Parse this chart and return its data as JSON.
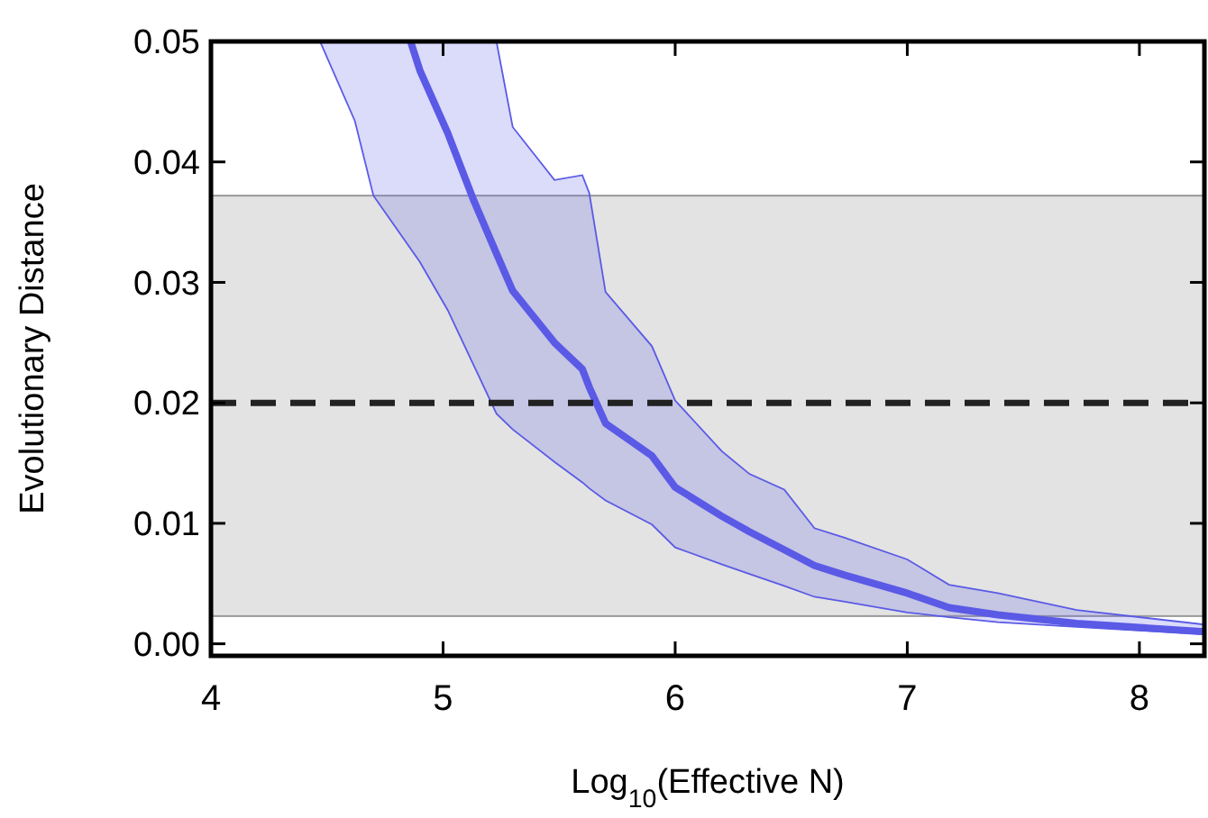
{
  "chart_data": {
    "type": "line",
    "xlabel": "Log$_{10}$(Effective N)",
    "ylabel": "Evolutionary Distance",
    "x": [
      4.47,
      4.62,
      4.7,
      4.86,
      4.9,
      5.02,
      5.13,
      5.23,
      5.3,
      5.48,
      5.6,
      5.63,
      5.7,
      5.9,
      6.0,
      6.2,
      6.32,
      6.47,
      6.6,
      6.73,
      7.0,
      7.18,
      7.39,
      7.73,
      8.28
    ],
    "series": [
      {
        "color": "#5a5ae6",
        "values": [
          null,
          null,
          null,
          0.05,
          0.0476,
          0.0424,
          0.0369,
          0.0324,
          0.0293,
          0.025,
          0.0228,
          0.0213,
          0.0183,
          0.0156,
          0.013,
          0.0106,
          0.0093,
          0.0078,
          0.0065,
          0.0057,
          0.0042,
          0.003,
          0.0024,
          0.0017,
          0.001
        ],
        "lower": [
          0.05,
          0.0434,
          0.0372,
          0.0328,
          0.0317,
          0.0277,
          0.0232,
          0.0191,
          0.0178,
          0.0151,
          0.0134,
          0.0129,
          0.0119,
          0.0099,
          0.008,
          0.0066,
          0.0058,
          0.0048,
          0.0039,
          0.0035,
          0.0026,
          0.0022,
          0.0018,
          0.0014,
          0.0008
        ],
        "upper": [
          0.05,
          0.05,
          0.05,
          0.05,
          0.05,
          0.05,
          0.05,
          0.05,
          0.0429,
          0.0385,
          0.0389,
          0.0374,
          0.0292,
          0.0247,
          0.0202,
          0.016,
          0.0141,
          0.0128,
          0.0096,
          0.0088,
          0.007,
          0.0049,
          0.0042,
          0.0028,
          0.0016
        ]
      }
    ],
    "xlim": [
      4,
      8.28
    ],
    "xticks": [
      4,
      5,
      6,
      7,
      8
    ],
    "ylim": [
      -0.001,
      0.05
    ],
    "yticks": [
      {
        "value": 0,
        "label": "0.00"
      },
      0.01,
      0.02,
      0.03,
      0.04,
      0.05
    ],
    "ref_lines": [
      {
        "axis": "y",
        "value": 0.02,
        "color": "#222222",
        "line_style": "dashed"
      }
    ],
    "bands": [
      {
        "axis": "y",
        "from": 0.0023,
        "to": 0.0372,
        "color": "#e3e3e3"
      }
    ],
    "grid": false
  }
}
